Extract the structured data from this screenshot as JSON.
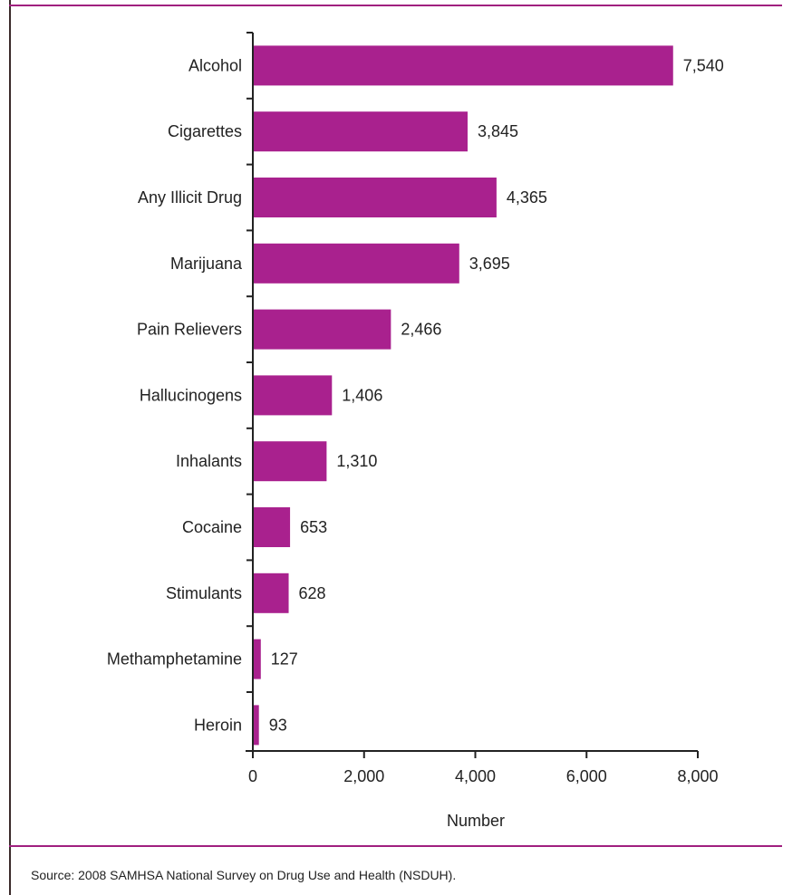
{
  "chart_data": {
    "type": "bar",
    "orientation": "horizontal",
    "categories": [
      "Alcohol",
      "Cigarettes",
      "Any Illicit Drug",
      "Marijuana",
      "Pain Relievers",
      "Hallucinogens",
      "Inhalants",
      "Cocaine",
      "Stimulants",
      "Methamphetamine",
      "Heroin"
    ],
    "values": [
      7540,
      3845,
      4365,
      3695,
      2466,
      1406,
      1310,
      653,
      628,
      127,
      93
    ],
    "value_labels": [
      "7,540",
      "3,845",
      "4,365",
      "3,695",
      "2,466",
      "1,406",
      "1,310",
      "653",
      "628",
      "127",
      "93"
    ],
    "xlabel": "Number",
    "ylabel": "",
    "xlim": [
      0,
      8000
    ],
    "xticks": [
      0,
      2000,
      4000,
      6000,
      8000
    ],
    "xtick_labels": [
      "0",
      "2,000",
      "4,000",
      "6,000",
      "8,000"
    ],
    "grid": false,
    "bar_color": "#a9218e"
  },
  "source": "Source: 2008 SAMHSA National Survey on Drug Use and Health (NSDUH).",
  "colors": {
    "rule": "#a0207f",
    "frame": "#3a2a2a"
  }
}
